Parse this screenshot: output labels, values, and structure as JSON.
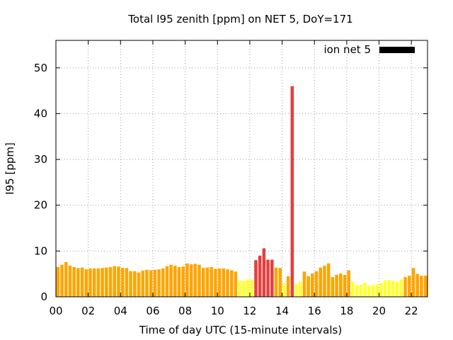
{
  "chart_data": {
    "type": "bar",
    "title": "Total I95 zenith [ppm] on NET 5, DoY=171",
    "xlabel": "Time of day UTC (15-minute intervals)",
    "ylabel": "I95 [ppm]",
    "legend_label": "ion net 5",
    "legend_position": "top-right",
    "grid": true,
    "xlim": [
      0,
      23
    ],
    "ylim": [
      0,
      56
    ],
    "x_ticks": [
      0,
      2,
      4,
      6,
      8,
      10,
      12,
      14,
      16,
      18,
      20,
      22
    ],
    "x_tick_labels": [
      "00",
      "02",
      "04",
      "06",
      "08",
      "10",
      "12",
      "14",
      "16",
      "18",
      "20",
      "22"
    ],
    "y_ticks": [
      0,
      10,
      20,
      30,
      40,
      50
    ],
    "y_tick_labels": [
      "0",
      "10",
      "20",
      "30",
      "40",
      "50"
    ],
    "bar_width_hours": 0.2,
    "colors": {
      "low": "#ffff33",
      "medium": "#ffa500",
      "high": "#e34040",
      "legend_swatch": "#000000"
    },
    "color_thresholds": {
      "low_max": 4,
      "medium_max": 7.6
    },
    "x": [
      0.125,
      0.375,
      0.625,
      0.875,
      1.125,
      1.375,
      1.625,
      1.875,
      2.125,
      2.375,
      2.625,
      2.875,
      3.125,
      3.375,
      3.625,
      3.875,
      4.125,
      4.375,
      4.625,
      4.875,
      5.125,
      5.375,
      5.625,
      5.875,
      6.125,
      6.375,
      6.625,
      6.875,
      7.125,
      7.375,
      7.625,
      7.875,
      8.125,
      8.375,
      8.625,
      8.875,
      9.125,
      9.375,
      9.625,
      9.875,
      10.125,
      10.375,
      10.625,
      10.875,
      11.125,
      11.375,
      11.625,
      11.875,
      12.125,
      12.375,
      12.625,
      12.875,
      13.125,
      13.375,
      13.625,
      13.875,
      14.125,
      14.375,
      14.625,
      14.875,
      15.125,
      15.375,
      15.625,
      15.875,
      16.125,
      16.375,
      16.625,
      16.875,
      17.125,
      17.375,
      17.625,
      17.875,
      18.125,
      18.375,
      18.625,
      18.875,
      19.125,
      19.375,
      19.625,
      19.875,
      20.125,
      20.375,
      20.625,
      20.875,
      21.125,
      21.375,
      21.625,
      21.875,
      22.125,
      22.375,
      22.625,
      22.875
    ],
    "values": [
      6.5,
      7.0,
      7.6,
      6.8,
      6.5,
      6.3,
      6.4,
      6.0,
      6.2,
      6.2,
      6.2,
      6.3,
      6.4,
      6.5,
      6.7,
      6.6,
      6.3,
      6.3,
      5.6,
      5.6,
      5.3,
      5.7,
      5.9,
      5.8,
      5.9,
      6.0,
      6.2,
      6.7,
      7.0,
      6.8,
      6.5,
      6.6,
      7.3,
      7.1,
      7.2,
      7.0,
      6.3,
      6.4,
      6.5,
      6.1,
      6.2,
      6.2,
      6.0,
      5.8,
      5.5,
      3.5,
      3.5,
      3.8,
      3.8,
      8.0,
      9.0,
      10.6,
      8.1,
      8.1,
      6.4,
      6.3,
      3.0,
      4.5,
      46.0,
      2.8,
      3.3,
      5.5,
      4.5,
      5.1,
      5.6,
      6.4,
      6.8,
      7.3,
      4.3,
      4.8,
      5.1,
      4.8,
      5.8,
      3.3,
      2.5,
      2.6,
      3.0,
      2.4,
      2.6,
      2.7,
      3.0,
      3.6,
      3.7,
      3.5,
      3.3,
      3.8,
      4.3,
      4.6,
      6.3,
      5.0,
      4.6,
      4.6
    ]
  }
}
